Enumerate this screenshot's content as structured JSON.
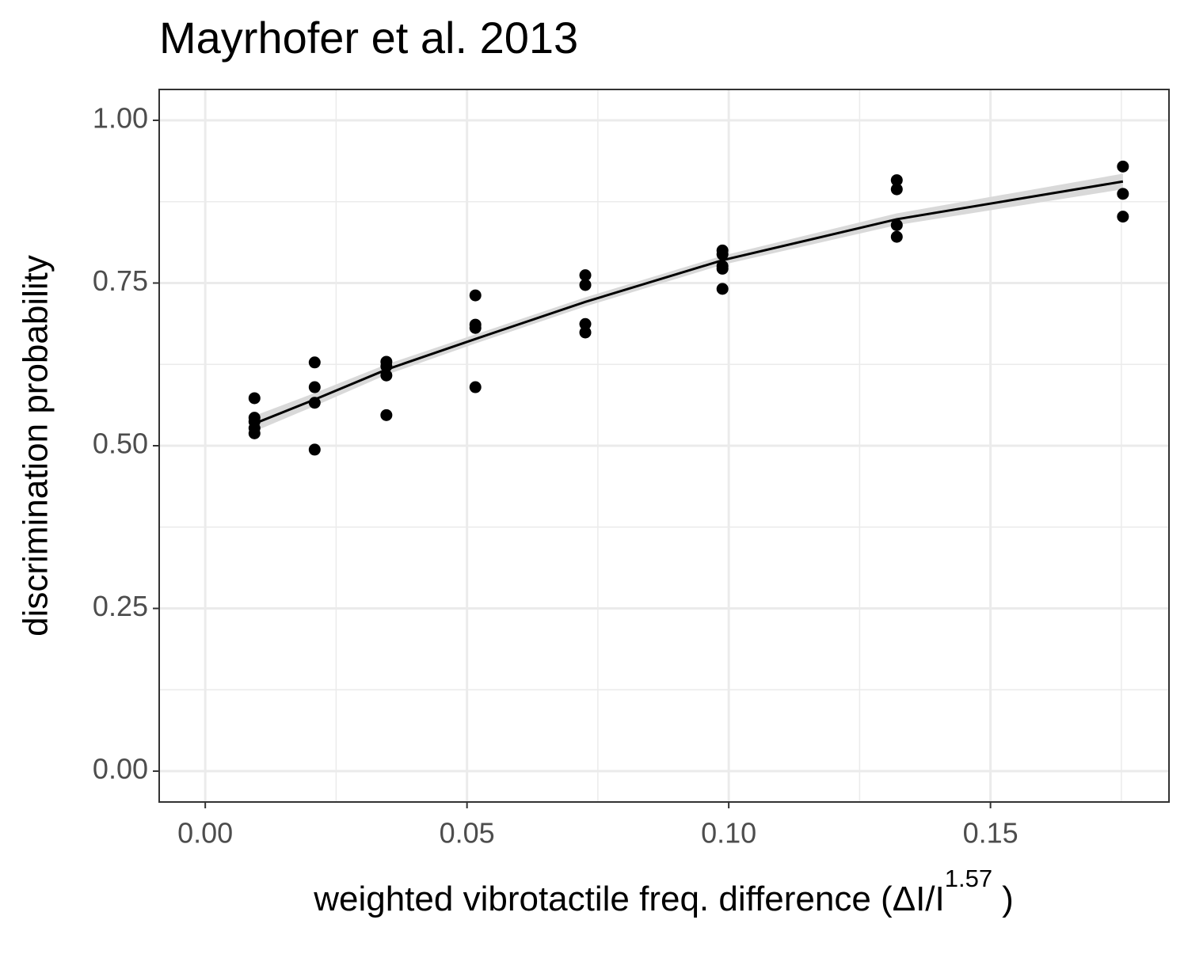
{
  "chart_data": {
    "type": "scatter",
    "title": "Mayrhofer et al. 2013",
    "xlabel": {
      "main": "weighted  vibrotactile freq.  difference (ΔI/I",
      "sup": "1.57",
      "end": ")"
    },
    "ylabel": "discrimination probability",
    "xlim": [
      -0.0088,
      0.1841
    ],
    "ylim": [
      -0.0474,
      1.0474
    ],
    "xticks": [
      {
        "value": 0,
        "label": "0.00"
      },
      {
        "value": 0.05,
        "label": "0.05"
      },
      {
        "value": 0.1,
        "label": "0.10"
      },
      {
        "value": 0.15,
        "label": "0.15"
      }
    ],
    "yticks": [
      {
        "value": 0,
        "label": "0.00"
      },
      {
        "value": 0.25,
        "label": "0.25"
      },
      {
        "value": 0.5,
        "label": "0.50"
      },
      {
        "value": 0.75,
        "label": "0.75"
      },
      {
        "value": 1,
        "label": "1.00"
      }
    ],
    "minor_xticks": [
      0.025,
      0.075,
      0.125,
      0.175
    ],
    "minor_yticks": [
      0.125,
      0.375,
      0.625,
      0.875
    ],
    "grid": true,
    "points": {
      "color": "#000000",
      "x": [
        0.0094,
        0.0094,
        0.0094,
        0.0094,
        0.0094,
        0.0209,
        0.0209,
        0.0209,
        0.0209,
        0.0346,
        0.0346,
        0.0346,
        0.0346,
        0.0516,
        0.0516,
        0.0516,
        0.0516,
        0.0726,
        0.0726,
        0.0726,
        0.0726,
        0.0988,
        0.0988,
        0.0988,
        0.0988,
        0.0988,
        0.1321,
        0.1321,
        0.1321,
        0.1321,
        0.1753,
        0.1753,
        0.1753
      ],
      "values": [
        0.573,
        0.543,
        0.537,
        0.527,
        0.519,
        0.628,
        0.59,
        0.566,
        0.494,
        0.629,
        0.622,
        0.608,
        0.547,
        0.731,
        0.686,
        0.681,
        0.59,
        0.762,
        0.747,
        0.687,
        0.674,
        0.8,
        0.794,
        0.776,
        0.772,
        0.741,
        0.908,
        0.894,
        0.839,
        0.821,
        0.929,
        0.887,
        0.852
      ]
    },
    "fit": {
      "color": "#000000",
      "band_color": "#d9d9d9",
      "x": [
        0.0094,
        0.0209,
        0.0346,
        0.0516,
        0.0726,
        0.0988,
        0.1321,
        0.1753
      ],
      "values": [
        0.534,
        0.571,
        0.617,
        0.664,
        0.721,
        0.785,
        0.848,
        0.906
      ],
      "lower": [
        0.522,
        0.561,
        0.609,
        0.657,
        0.714,
        0.778,
        0.839,
        0.894
      ],
      "upper": [
        0.546,
        0.581,
        0.625,
        0.671,
        0.728,
        0.792,
        0.857,
        0.918
      ]
    }
  }
}
